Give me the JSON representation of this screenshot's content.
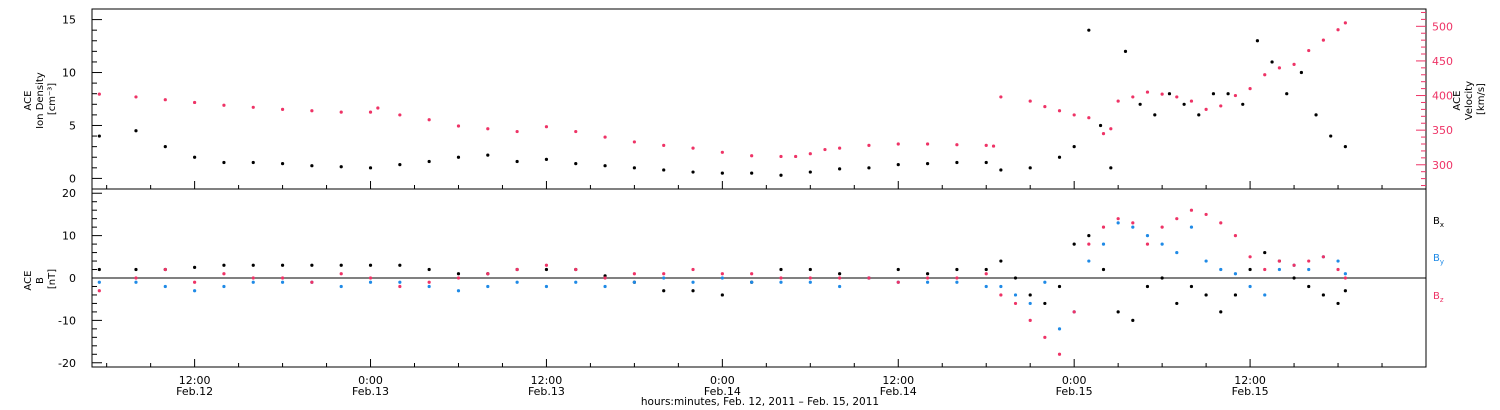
{
  "chart_data": [
    {
      "type": "scatter",
      "panel": "top",
      "ylabel_left": [
        "ACE",
        "Ion Density",
        "[cm⁻³]"
      ],
      "ylabel_right": [
        "ACE",
        "Velocity",
        "[km/s]"
      ],
      "ylim_left": [
        -1,
        16
      ],
      "yticks_left": [
        "0",
        "5",
        "10",
        "15"
      ],
      "ylim_right": [
        265,
        525
      ],
      "yticks_right": [
        "300",
        "350",
        "400",
        "450",
        "500"
      ],
      "x_range_hours": [
        -19,
        72
      ],
      "series": [
        {
          "color": "#000000",
          "axis": "left",
          "x": [
            -18.5,
            -16,
            -14,
            -12,
            -10,
            -8,
            -6,
            -4,
            -2,
            0,
            2,
            4,
            6,
            8,
            10,
            12,
            14,
            16,
            18,
            20,
            22,
            24,
            26,
            28,
            30,
            32,
            34,
            36,
            38,
            40,
            42,
            43,
            45,
            47,
            48,
            49,
            49.8,
            50.5,
            51.5,
            52.5,
            53.5,
            54.5,
            55.5,
            56.5,
            57.5,
            58.5,
            59.5,
            60.5,
            61.5,
            62.5,
            63.5,
            64.5,
            65.5,
            66.5
          ],
          "y": [
            4.0,
            4.5,
            3.0,
            2.0,
            1.5,
            1.5,
            1.4,
            1.2,
            1.1,
            1.0,
            1.3,
            1.6,
            2.0,
            2.2,
            1.6,
            1.8,
            1.4,
            1.2,
            1.0,
            0.8,
            0.6,
            0.5,
            0.5,
            0.3,
            0.6,
            0.9,
            1.0,
            1.3,
            1.4,
            1.5,
            1.5,
            0.8,
            1.0,
            2.0,
            3.0,
            14.0,
            5.0,
            1.0,
            12.0,
            7.0,
            6.0,
            8.0,
            7.0,
            6.0,
            8.0,
            8.0,
            7.0,
            13.0,
            11.0,
            8.0,
            10.0,
            6.0,
            4.0,
            3.0
          ]
        },
        {
          "color": "#ee3366",
          "axis": "right",
          "x": [
            -18.5,
            -16,
            -14,
            -12,
            -10,
            -8,
            -6,
            -4,
            -2,
            0,
            0.5,
            2,
            4,
            6,
            8,
            10,
            12,
            14,
            16,
            18,
            20,
            22,
            24,
            26,
            28,
            29,
            30,
            31,
            32,
            34,
            36,
            38,
            40,
            42,
            42.5,
            43,
            45,
            46,
            47,
            48,
            49,
            50,
            50.5,
            51,
            52,
            53,
            54,
            55,
            56,
            57,
            58,
            59,
            60,
            61,
            62,
            63,
            64,
            65,
            66,
            66.5
          ],
          "y": [
            402,
            398,
            394,
            390,
            386,
            383,
            380,
            378,
            376,
            376,
            382,
            372,
            365,
            356,
            352,
            348,
            355,
            348,
            340,
            333,
            328,
            324,
            318,
            313,
            312,
            312,
            316,
            322,
            324,
            328,
            330,
            330,
            329,
            328,
            327,
            398,
            392,
            384,
            378,
            372,
            368,
            345,
            352,
            392,
            398,
            405,
            402,
            398,
            392,
            380,
            385,
            400,
            410,
            430,
            440,
            445,
            465,
            480,
            495,
            505
          ]
        }
      ]
    },
    {
      "type": "scatter",
      "panel": "bottom",
      "ylabel_left": [
        "ACE",
        "B",
        "[nT]"
      ],
      "ylim": [
        -21,
        21
      ],
      "yticks": [
        "20",
        "10",
        "0",
        "-10",
        "-20"
      ],
      "hline": 0,
      "legend_position": "right",
      "x_range_hours": [
        -19,
        72
      ],
      "series": [
        {
          "name": "Bx",
          "color": "#000000",
          "x": [
            -18.5,
            -16,
            -14,
            -12,
            -10,
            -8,
            -6,
            -4,
            -2,
            0,
            2,
            4,
            6,
            8,
            10,
            12,
            14,
            16,
            18,
            20,
            22,
            24,
            26,
            28,
            30,
            32,
            34,
            36,
            38,
            40,
            42,
            43,
            44,
            45,
            46,
            47,
            48,
            49,
            50,
            51,
            52,
            53,
            54,
            55,
            56,
            57,
            58,
            59,
            60,
            61,
            62,
            63,
            64,
            65,
            66,
            66.5
          ],
          "y": [
            2,
            2,
            2,
            2.5,
            3,
            3,
            3,
            3,
            3,
            3,
            3,
            2,
            1,
            1,
            2,
            2,
            2,
            0.5,
            -1,
            -3,
            -3,
            -4,
            -1,
            2,
            2,
            1,
            0,
            2,
            1,
            2,
            2,
            4,
            0,
            -4,
            -6,
            -2,
            8,
            10,
            2,
            -8,
            -10,
            -2,
            0,
            -6,
            -2,
            -4,
            -8,
            -4,
            2,
            6,
            4,
            0,
            -2,
            -4,
            -6,
            -3
          ]
        },
        {
          "name": "By",
          "color": "#1f8ae6",
          "x": [
            -18.5,
            -16,
            -14,
            -12,
            -10,
            -8,
            -6,
            -4,
            -2,
            0,
            2,
            4,
            6,
            8,
            10,
            12,
            14,
            16,
            18,
            20,
            22,
            24,
            26,
            28,
            30,
            32,
            34,
            36,
            38,
            40,
            42,
            43,
            44,
            45,
            46,
            47,
            48,
            49,
            50,
            51,
            52,
            53,
            54,
            55,
            56,
            57,
            58,
            59,
            60,
            61,
            62,
            63,
            64,
            65,
            66,
            66.5
          ],
          "y": [
            -1,
            -1,
            -2,
            -3,
            -2,
            -1,
            -1,
            -1,
            -2,
            -1,
            -1,
            -2,
            -3,
            -2,
            -1,
            -2,
            -1,
            -2,
            -1,
            0,
            -1,
            0,
            -1,
            -1,
            -1,
            -2,
            0,
            -1,
            -1,
            -1,
            -2,
            -2,
            -4,
            -6,
            -1,
            -12,
            -8,
            4,
            8,
            13,
            12,
            10,
            8,
            6,
            12,
            4,
            2,
            1,
            -2,
            -4,
            2,
            3,
            2,
            5,
            4,
            1
          ]
        },
        {
          "name": "Bz",
          "color": "#ee3366",
          "x": [
            -18.5,
            -16,
            -14,
            -12,
            -10,
            -8,
            -6,
            -4,
            -2,
            0,
            2,
            4,
            6,
            8,
            10,
            12,
            14,
            16,
            18,
            20,
            22,
            24,
            26,
            28,
            30,
            32,
            34,
            36,
            38,
            40,
            42,
            43,
            44,
            45,
            46,
            47,
            48,
            49,
            50,
            51,
            52,
            53,
            54,
            55,
            56,
            57,
            58,
            59,
            60,
            61,
            62,
            63,
            64,
            65,
            66,
            66.5
          ],
          "y": [
            -3,
            0,
            2,
            -1,
            1,
            0,
            0,
            -1,
            1,
            0,
            -2,
            -1,
            0,
            1,
            2,
            3,
            2,
            0,
            1,
            1,
            2,
            1,
            1,
            0,
            0,
            0,
            0,
            -1,
            0,
            0,
            1,
            -4,
            -6,
            -10,
            -14,
            -18,
            -8,
            8,
            12,
            14,
            13,
            8,
            12,
            14,
            16,
            15,
            13,
            10,
            5,
            2,
            4,
            3,
            4,
            5,
            2,
            0
          ]
        }
      ]
    }
  ],
  "x_axis": {
    "ticks": [
      {
        "hours": -12,
        "time": "12:00",
        "date": "Feb.12"
      },
      {
        "hours": 0,
        "time": "0:00",
        "date": "Feb.13"
      },
      {
        "hours": 12,
        "time": "12:00",
        "date": "Feb.13"
      },
      {
        "hours": 24,
        "time": "0:00",
        "date": "Feb.14"
      },
      {
        "hours": 36,
        "time": "12:00",
        "date": "Feb.14"
      },
      {
        "hours": 48,
        "time": "0:00",
        "date": "Feb.15"
      },
      {
        "hours": 60,
        "time": "12:00",
        "date": "Feb.15"
      }
    ],
    "title": "hours:minutes, Feb. 12, 2011 – Feb. 15, 2011"
  },
  "legend": {
    "bx": {
      "main": "B",
      "sub": "x"
    },
    "by": {
      "main": "B",
      "sub": "y"
    },
    "bz": {
      "main": "B",
      "sub": "z"
    }
  }
}
